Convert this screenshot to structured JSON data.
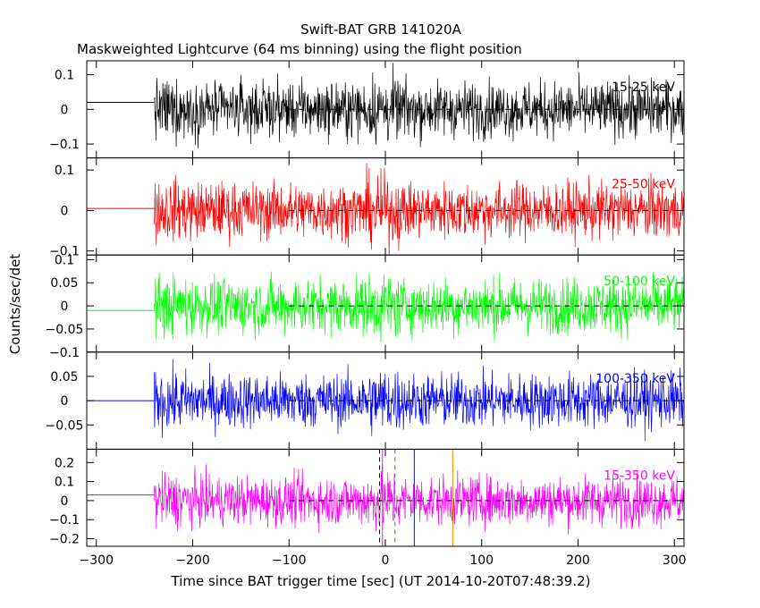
{
  "title": "Swift-BAT GRB 141020A",
  "subtitle": "Maskweighted Lightcurve (64 ms binning) using the flight position",
  "xlabel": "Time since BAT trigger time [sec] (UT 2014-10-20T07:48:39.2)",
  "ylabel": "Counts/sec/det",
  "chart_data": {
    "type": "line",
    "title": "Swift-BAT GRB 141020A",
    "subtitle": "Maskweighted Lightcurve (64 ms binning) using the flight position",
    "xlabel": "Time since BAT trigger time [sec] (UT 2014-10-20T07:48:39.2)",
    "ylabel": "Counts/sec/det",
    "xlim": [
      -310,
      310
    ],
    "x_ticks": [
      -300,
      -200,
      -100,
      0,
      100,
      200,
      300
    ],
    "binning_sec": 0.064,
    "data_start_sec": -240,
    "data_end_sec": 310,
    "zero_reference_from_sec": -100,
    "vertical_markers": [
      {
        "x": -3,
        "color": "#ff00ff",
        "style": "solid"
      },
      {
        "x": -6,
        "color": "#000000",
        "style": "dashed"
      },
      {
        "x": 10,
        "color": "#00aa00",
        "style": "dashed"
      },
      {
        "x": 30,
        "color": "#0000ff",
        "style": "solid"
      },
      {
        "x": 70,
        "color": "#ff8800",
        "style": "solid"
      }
    ],
    "series": [
      {
        "name": "15-25 keV",
        "color": "#000000",
        "ylim": [
          -0.14,
          0.14
        ],
        "y_ticks": [
          -0.1,
          0,
          0.1
        ],
        "y_tick_labels": [
          "−0.1",
          "0",
          "0.1"
        ],
        "pre_level": 0.02,
        "noise_sigma": 0.04
      },
      {
        "name": "25-50 keV",
        "color": "#ff0000",
        "ylim": [
          -0.11,
          0.13
        ],
        "y_ticks": [
          -0.1,
          0,
          0.1
        ],
        "y_tick_labels": [
          "−0.1",
          "0",
          "0.1"
        ],
        "pre_level": 0.005,
        "noise_sigma": 0.035
      },
      {
        "name": "50-100 keV",
        "color": "#00ff00",
        "ylim": [
          -0.1,
          0.11
        ],
        "y_ticks": [
          -0.1,
          -0.05,
          0,
          0.05,
          0.1
        ],
        "y_tick_labels": [
          "−0.1",
          "−0.05",
          "0",
          "0.05",
          "0.1"
        ],
        "pre_level": -0.01,
        "noise_sigma": 0.03
      },
      {
        "name": "100-350 keV",
        "color": "#0000ff",
        "ylim": [
          -0.1,
          0.1
        ],
        "y_ticks": [
          -0.05,
          0,
          0.05
        ],
        "y_tick_labels": [
          "−0.05",
          "0",
          "0.05"
        ],
        "pre_level": 0.0,
        "noise_sigma": 0.028
      },
      {
        "name": "15-350 keV",
        "color": "#ff00ff",
        "ylim": [
          -0.24,
          0.27
        ],
        "y_ticks": [
          -0.2,
          -0.1,
          0,
          0.1,
          0.2
        ],
        "y_tick_labels": [
          "−0.2",
          "−0.1",
          "0",
          "0.1",
          "0.2"
        ],
        "pre_level": 0.03,
        "noise_sigma": 0.065
      }
    ]
  }
}
